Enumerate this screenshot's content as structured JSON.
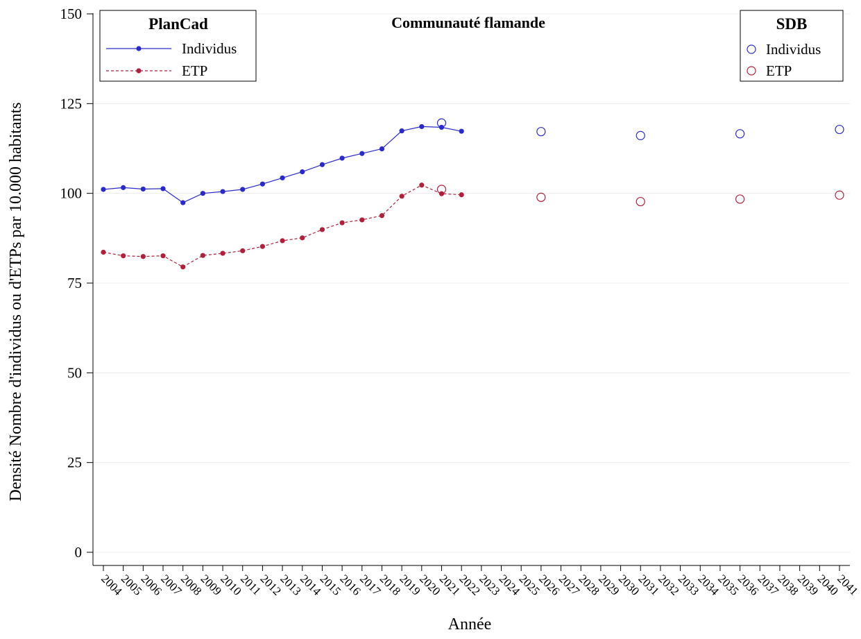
{
  "chart_data": {
    "type": "line",
    "title": "Communauté flamande",
    "xlabel": "Année",
    "ylabel": "Densité Nombre d'individus ou d'ETPs par 10.000 habitants",
    "ylim": [
      0,
      150
    ],
    "yticks": [
      0,
      25,
      50,
      75,
      100,
      125,
      150
    ],
    "grid": true,
    "categories": [
      "2004",
      "2005",
      "2006",
      "2007",
      "2008",
      "2009",
      "2010",
      "2011",
      "2012",
      "2013",
      "2014",
      "2015",
      "2016",
      "2017",
      "2018",
      "2019",
      "2020",
      "2021",
      "2022",
      "2023",
      "2024",
      "2025",
      "2026",
      "2027",
      "2028",
      "2029",
      "2030",
      "2031",
      "2032",
      "2033",
      "2034",
      "2035",
      "2036",
      "2037",
      "2038",
      "2039",
      "2040",
      "2041"
    ],
    "legends": [
      {
        "title": "PlanCad",
        "position": "top-left",
        "entries": [
          "Individus",
          "ETP"
        ]
      },
      {
        "title": "SDB",
        "position": "top-right",
        "entries": [
          "Individus",
          "ETP"
        ]
      }
    ],
    "series": [
      {
        "name": "Individus",
        "group": "PlanCad",
        "style": "solid-line-dots",
        "color": "#2a2acc",
        "x": [
          2004,
          2005,
          2006,
          2007,
          2008,
          2009,
          2010,
          2011,
          2012,
          2013,
          2014,
          2015,
          2016,
          2017,
          2018,
          2019,
          2020,
          2021,
          2022
        ],
        "values": [
          101.1,
          101.6,
          101.2,
          101.3,
          97.4,
          100.0,
          100.5,
          101.1,
          102.6,
          104.3,
          106.0,
          108.0,
          109.8,
          111.1,
          112.4,
          117.4,
          118.6,
          118.4,
          117.3
        ]
      },
      {
        "name": "ETP",
        "group": "PlanCad",
        "style": "dashed-line-dots",
        "color": "#b21f3a",
        "x": [
          2004,
          2005,
          2006,
          2007,
          2008,
          2009,
          2010,
          2011,
          2012,
          2013,
          2014,
          2015,
          2016,
          2017,
          2018,
          2019,
          2020,
          2021,
          2022
        ],
        "values": [
          83.6,
          82.6,
          82.4,
          82.6,
          79.5,
          82.7,
          83.3,
          84.0,
          85.2,
          86.8,
          87.6,
          89.9,
          91.8,
          92.6,
          93.8,
          99.2,
          102.3,
          99.9,
          99.6
        ]
      },
      {
        "name": "Individus",
        "group": "SDB",
        "style": "hollow-circles",
        "color": "#2a2acc",
        "x": [
          2021,
          2026,
          2031,
          2036,
          2041
        ],
        "values": [
          119.6,
          117.2,
          116.1,
          116.6,
          117.8
        ]
      },
      {
        "name": "ETP",
        "group": "SDB",
        "style": "hollow-circles",
        "color": "#b21f3a",
        "x": [
          2021,
          2026,
          2031,
          2036,
          2041
        ],
        "values": [
          101.1,
          98.9,
          97.7,
          98.4,
          99.5
        ]
      }
    ]
  }
}
